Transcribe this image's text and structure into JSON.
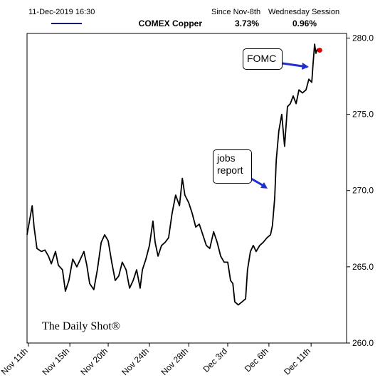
{
  "chart_data": {
    "type": "line",
    "timestamp": "11-Dec-2019 16:30",
    "stats_headers": [
      "Since Nov-8th",
      "Wednesday Session"
    ],
    "legend_color": "#14146e",
    "x": [
      0,
      1.6,
      2.2,
      3.1,
      4.5,
      5.6,
      6.7,
      7.6,
      8.9,
      9.8,
      11.1,
      12.0,
      13.1,
      14.3,
      15.6,
      16.7,
      17.8,
      18.7,
      19.6,
      20.9,
      22.0,
      23.2,
      24.3,
      25.4,
      26.5,
      27.6,
      28.7,
      29.8,
      31.0,
      32.1,
      33.2,
      34.3,
      35.4,
      36.1,
      37.2,
      38.3,
      39.4,
      40.1,
      41.0,
      42.1,
      43.2,
      44.3,
      45.4,
      46.5,
      47.7,
      48.6,
      49.4,
      50.6,
      51.7,
      52.8,
      53.9,
      55.0,
      56.1,
      57.2,
      58.4,
      59.5,
      60.6,
      61.7,
      62.8,
      63.7,
      64.4,
      65.0,
      66.1,
      67.3,
      68.4,
      69.0,
      69.9,
      70.8,
      71.7,
      72.8,
      73.9,
      75.1,
      76.2,
      76.8,
      77.5,
      78.0,
      78.8,
      79.7,
      80.6,
      81.5,
      82.4,
      83.3,
      84.2,
      85.1,
      86.2,
      87.3,
      88.2,
      89.1,
      89.5,
      90.0,
      90.4,
      90.9
    ],
    "series": [
      {
        "name": "COMEX Copper",
        "color": "#000000",
        "stats": [
          "3.73%",
          "0.96%"
        ],
        "values": [
          267.1,
          269.0,
          267.6,
          266.2,
          266.0,
          266.1,
          265.7,
          265.2,
          266.0,
          265.1,
          264.8,
          263.4,
          264.1,
          265.5,
          265.0,
          265.5,
          266.0,
          265.1,
          263.9,
          263.5,
          264.8,
          266.6,
          267.1,
          266.7,
          265.3,
          264.1,
          264.4,
          265.3,
          264.8,
          263.6,
          264.1,
          264.8,
          263.6,
          264.8,
          265.5,
          266.4,
          268.0,
          266.6,
          265.7,
          266.4,
          266.6,
          266.9,
          268.5,
          269.7,
          269.0,
          270.8,
          269.7,
          269.2,
          268.5,
          267.6,
          267.8,
          267.1,
          266.4,
          266.2,
          267.3,
          266.6,
          265.7,
          265.3,
          265.3,
          264.1,
          263.9,
          262.7,
          262.5,
          262.7,
          262.9,
          264.8,
          266.0,
          266.4,
          266.0,
          266.4,
          266.6,
          266.9,
          267.1,
          267.7,
          269.5,
          272.0,
          273.9,
          275.0,
          272.9,
          275.5,
          275.7,
          276.2,
          275.7,
          276.6,
          276.4,
          276.6,
          277.3,
          277.1,
          278.3,
          279.6,
          279.0,
          279.3
        ]
      }
    ],
    "last_point": {
      "x": 91.6,
      "y": 279.2,
      "color": "#e00000"
    },
    "xlim": [
      0,
      100
    ],
    "xticks": [
      {
        "value": 0.4,
        "label": "Nov 11th"
      },
      {
        "value": 13.4,
        "label": "Nov 15th"
      },
      {
        "value": 25.4,
        "label": "Nov 20th"
      },
      {
        "value": 38.3,
        "label": "Nov 24th"
      },
      {
        "value": 50.6,
        "label": "Nov 28th"
      },
      {
        "value": 62.8,
        "label": "Dec 3rd"
      },
      {
        "value": 75.7,
        "label": "Dec 6th"
      },
      {
        "value": 88.9,
        "label": "Dec 11th"
      }
    ],
    "ylim": [
      260,
      280.3
    ],
    "yticks": [
      {
        "value": 260,
        "label": "260.0"
      },
      {
        "value": 265,
        "label": "265.0"
      },
      {
        "value": 270,
        "label": "270.0"
      },
      {
        "value": 275,
        "label": "275.0"
      },
      {
        "value": 280,
        "label": "280.0"
      }
    ],
    "grid": false,
    "annotations": [
      "FOMC",
      "jobs report"
    ],
    "watermark": "The Daily Shot®"
  }
}
